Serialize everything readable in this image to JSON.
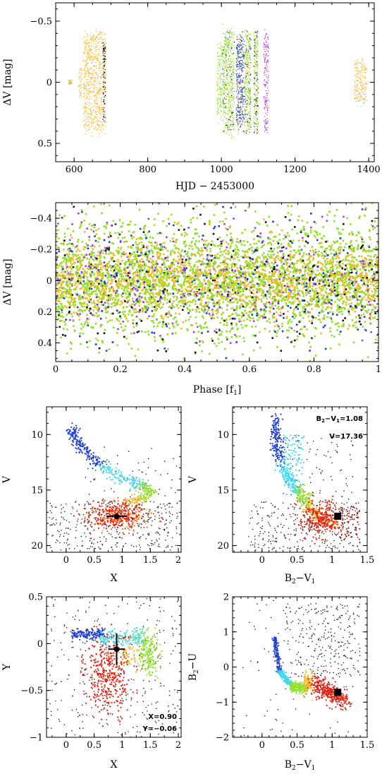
{
  "chart_data": [
    {
      "id": "lightcurve",
      "type": "scatter",
      "xlabel": "HJD − 2453000",
      "ylabel": "ΔV [mag]",
      "xlim": [
        550,
        1415
      ],
      "ylim": [
        0.65,
        -0.65
      ],
      "xticks": [
        600,
        800,
        1000,
        1200,
        1400
      ],
      "xtick_labels": [
        "600",
        "800",
        "1000",
        "1200",
        "1400"
      ],
      "yticks": [
        -0.5,
        0,
        0.5
      ],
      "ytick_labels": [
        "−0.5",
        "0",
        "0.5"
      ],
      "series_colors": [
        "#f5b82e",
        "#8fe02a",
        "#1f3fd0",
        "#b03ad8",
        "#111111"
      ],
      "segments": [
        {
          "x": [
            585,
            595
          ],
          "half_amp": 0.02,
          "color": "#f5b82e"
        },
        {
          "x": [
            612,
            622
          ],
          "half_amp": 0.15,
          "color": "#f5b82e"
        },
        {
          "x": [
            625,
            686
          ],
          "half_amp": 0.45,
          "color": "#f5b82e"
        },
        {
          "x": [
            678,
            686
          ],
          "half_amp": 0.35,
          "color": "#111111"
        },
        {
          "x": [
            988,
            1002
          ],
          "half_amp": 0.35,
          "color": "#8fe02a"
        },
        {
          "x": [
            1003,
            1035
          ],
          "half_amp": 0.48,
          "color": "#8fe02a"
        },
        {
          "x": [
            1040,
            1062
          ],
          "half_amp": 0.4,
          "color": "#1f3fd0"
        },
        {
          "x": [
            1063,
            1080
          ],
          "half_amp": 0.45,
          "color": "#8fe02a"
        },
        {
          "x": [
            1088,
            1100
          ],
          "half_amp": 0.45,
          "color": "#8fe02a"
        },
        {
          "x": [
            1115,
            1128
          ],
          "half_amp": 0.45,
          "color": "#b03ad8"
        },
        {
          "x": [
            1360,
            1395
          ],
          "half_amp": 0.2,
          "color": "#f5b82e"
        }
      ]
    },
    {
      "id": "phased",
      "type": "scatter",
      "xlabel": "Phase [f1]",
      "xlabel_main": "Phase [f",
      "xlabel_sub": "1",
      "xlabel_end": "]",
      "ylabel": "ΔV [mag]",
      "xlim": [
        0,
        1
      ],
      "ylim": [
        0.52,
        -0.5
      ],
      "xticks": [
        0,
        0.2,
        0.4,
        0.6,
        0.8,
        1
      ],
      "xtick_labels": [
        "0",
        "0.2",
        "0.4",
        "0.6",
        "0.8",
        "1"
      ],
      "yticks": [
        -0.4,
        -0.2,
        0,
        0.2,
        0.4
      ],
      "ytick_labels": [
        "−0.4",
        "−0.2",
        "0",
        "0.2",
        "0.4"
      ],
      "series_colors": [
        "#8fe02a",
        "#f5b82e",
        "#1f3fd0",
        "#b03ad8",
        "#111111"
      ]
    },
    {
      "id": "cmd-x-v",
      "type": "scatter",
      "xlabel": "X",
      "ylabel": "V",
      "xlim": [
        -0.35,
        2.05
      ],
      "ylim": [
        20.6,
        7.5
      ],
      "xticks": [
        0,
        0.5,
        1,
        1.5,
        2
      ],
      "xtick_labels": [
        "0",
        "0.5",
        "1",
        "1.5",
        "2"
      ],
      "yticks": [
        10,
        15,
        20
      ],
      "ytick_labels": [
        "10",
        "15",
        "20"
      ],
      "star": {
        "x": 0.9,
        "y": 17.36,
        "xerr": 0.18,
        "yerr": 0.2
      }
    },
    {
      "id": "cmd-b2v1-v",
      "type": "scatter",
      "xlabel": "B2−V1",
      "xlabel_main": "B",
      "xlabel_sub1": "2",
      "xlabel_mid": "−V",
      "xlabel_sub2": "1",
      "ylabel": "V",
      "xlim": [
        -0.42,
        1.5
      ],
      "ylim": [
        20.6,
        7.5
      ],
      "xticks": [
        0,
        0.5,
        1,
        1.5
      ],
      "xtick_labels": [
        "0",
        "0.5",
        "1",
        "1.5"
      ],
      "yticks": [
        10,
        15,
        20
      ],
      "ytick_labels": [
        "10",
        "15",
        "20"
      ],
      "star": {
        "x": 1.08,
        "y": 17.36
      },
      "annotation": {
        "line1_main": "B",
        "line1_sub1": "2",
        "line1_mid": "−V",
        "line1_sub2": "1",
        "line1_end": "=1.08",
        "line2": "V=17.36"
      }
    },
    {
      "id": "cc-x-y",
      "type": "scatter",
      "xlabel": "X",
      "ylabel": "Y",
      "xlim": [
        -0.35,
        2.05
      ],
      "ylim": [
        -1.0,
        0.5
      ],
      "xticks": [
        0,
        0.5,
        1,
        1.5,
        2
      ],
      "xtick_labels": [
        "0",
        "0.5",
        "1",
        "1.5",
        "2"
      ],
      "yticks": [
        0.5,
        0,
        -0.5,
        -1
      ],
      "ytick_labels": [
        "0.5",
        "0",
        "−0.5",
        "−1"
      ],
      "star": {
        "x": 0.9,
        "y": -0.06,
        "xerr": 0.15,
        "yerr": 0.17
      },
      "annotation": {
        "line1": "X=0.90",
        "line2": "Y=−0.06"
      }
    },
    {
      "id": "cc-b2v1-b2u",
      "type": "scatter",
      "xlabel": "B2−V1",
      "xlabel_main": "B",
      "xlabel_sub1": "2",
      "xlabel_mid": "−V",
      "xlabel_sub2": "1",
      "ylabel": "B2−U",
      "ylabel_main": "B",
      "ylabel_sub": "2",
      "ylabel_end": "−U",
      "xlim": [
        -0.42,
        1.5
      ],
      "ylim": [
        -2.0,
        2.0
      ],
      "xticks": [
        0,
        0.5,
        1,
        1.5
      ],
      "xtick_labels": [
        "0",
        "0.5",
        "1",
        "1.5"
      ],
      "yticks": [
        2,
        1,
        0,
        -1,
        -2
      ],
      "ytick_labels": [
        "2",
        "1",
        "0",
        "−1",
        "−2"
      ],
      "star": {
        "x": 1.08,
        "y": -0.72
      }
    }
  ]
}
